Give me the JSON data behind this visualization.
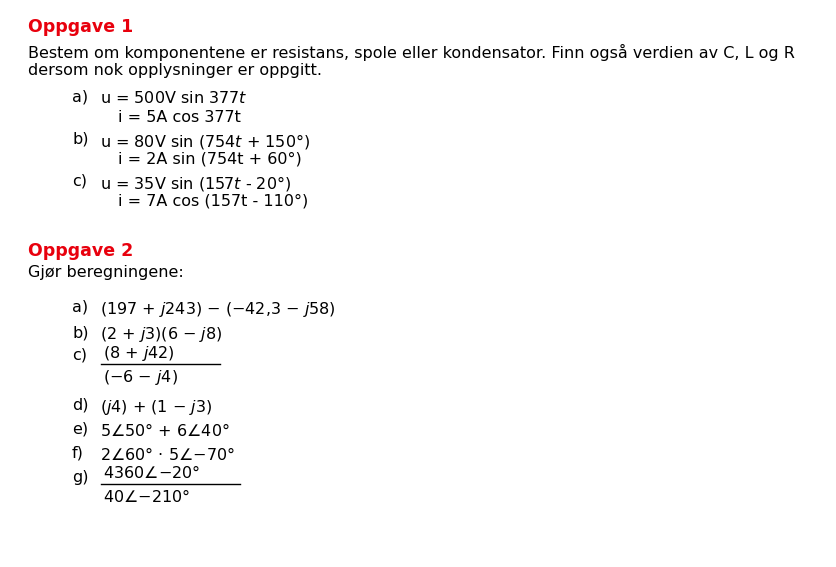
{
  "background_color": "#ffffff",
  "red_color": "#E8000D",
  "black_color": "#000000",
  "figsize": [
    8.37,
    5.67
  ],
  "dpi": 100
}
